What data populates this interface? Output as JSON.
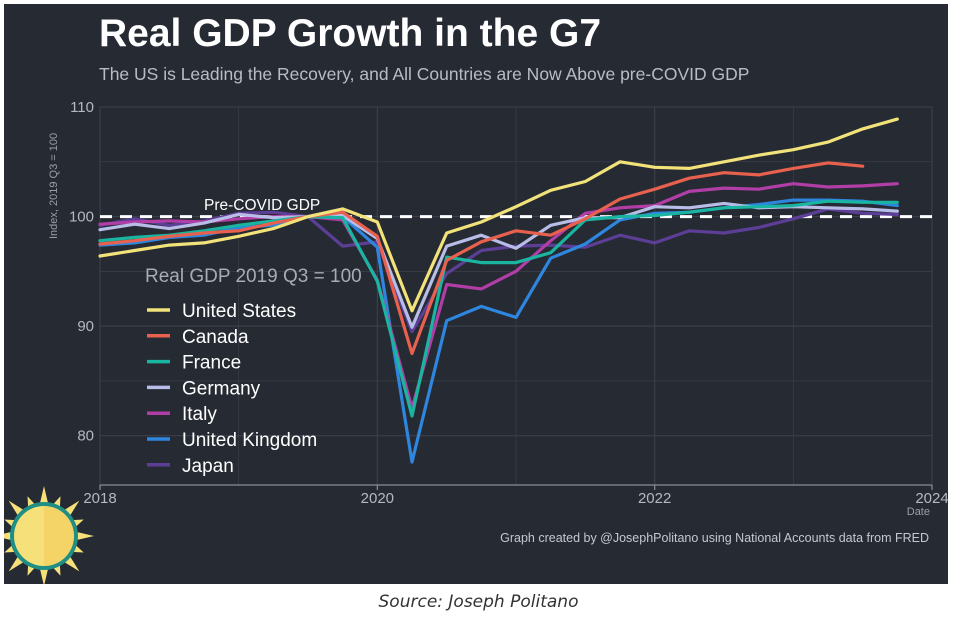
{
  "caption": "Source: Joseph Politano",
  "credit": "Graph created by @JosephPolitano using National Accounts data from FRED",
  "logo": {
    "icon": "sun-icon"
  },
  "colors": {
    "background": "#262a33",
    "grid": "#3a3f4a",
    "reference_line": "#ffffff"
  },
  "chart_data": {
    "type": "line",
    "title": "Real GDP Growth in the G7",
    "subtitle": "The US is Leading the Recovery, and All Countries are Now Above pre-COVID GDP",
    "xlabel": "Date",
    "ylabel": "Index, 2019 Q3 = 100",
    "xlim": [
      2018,
      2024
    ],
    "ylim": [
      75.5,
      110
    ],
    "x_ticks": [
      2018,
      2020,
      2022,
      2024
    ],
    "y_ticks": [
      80,
      90,
      100,
      110
    ],
    "grid": true,
    "legend_title": "Real GDP 2019 Q3 = 100",
    "legend_position": "lower-left",
    "reference_line": {
      "y": 100,
      "label": "Pre-COVID GDP",
      "style": "dashed"
    },
    "series": [
      {
        "name": "United States",
        "color": "#f2e27a",
        "points": [
          [
            2018.0,
            96.4
          ],
          [
            2018.25,
            96.9
          ],
          [
            2018.5,
            97.4
          ],
          [
            2018.75,
            97.6
          ],
          [
            2019.0,
            98.2
          ],
          [
            2019.25,
            98.9
          ],
          [
            2019.5,
            100.0
          ],
          [
            2019.75,
            100.7
          ],
          [
            2020.0,
            99.5
          ],
          [
            2020.25,
            91.4
          ],
          [
            2020.5,
            98.5
          ],
          [
            2020.75,
            99.5
          ],
          [
            2021.0,
            100.9
          ],
          [
            2021.25,
            102.4
          ],
          [
            2021.5,
            103.2
          ],
          [
            2021.75,
            105.0
          ],
          [
            2022.0,
            104.5
          ],
          [
            2022.25,
            104.4
          ],
          [
            2022.5,
            105.0
          ],
          [
            2022.75,
            105.6
          ],
          [
            2023.0,
            106.1
          ],
          [
            2023.25,
            106.8
          ],
          [
            2023.5,
            108.0
          ],
          [
            2023.75,
            108.9
          ]
        ]
      },
      {
        "name": "Canada",
        "color": "#e8604e",
        "points": [
          [
            2018.0,
            97.5
          ],
          [
            2018.25,
            97.8
          ],
          [
            2018.5,
            98.2
          ],
          [
            2018.75,
            98.5
          ],
          [
            2019.0,
            98.7
          ],
          [
            2019.25,
            99.4
          ],
          [
            2019.5,
            100.0
          ],
          [
            2019.75,
            100.4
          ],
          [
            2020.0,
            98.2
          ],
          [
            2020.25,
            87.5
          ],
          [
            2020.5,
            96.0
          ],
          [
            2020.75,
            97.7
          ],
          [
            2021.0,
            98.7
          ],
          [
            2021.25,
            98.3
          ],
          [
            2021.5,
            99.8
          ],
          [
            2021.75,
            101.6
          ],
          [
            2022.0,
            102.5
          ],
          [
            2022.25,
            103.5
          ],
          [
            2022.5,
            104.0
          ],
          [
            2022.75,
            103.8
          ],
          [
            2023.0,
            104.4
          ],
          [
            2023.25,
            104.9
          ],
          [
            2023.5,
            104.6
          ]
        ]
      },
      {
        "name": "France",
        "color": "#19b5a0",
        "points": [
          [
            2018.0,
            97.8
          ],
          [
            2018.25,
            98.1
          ],
          [
            2018.5,
            98.3
          ],
          [
            2018.75,
            98.7
          ],
          [
            2019.0,
            99.2
          ],
          [
            2019.25,
            99.6
          ],
          [
            2019.5,
            100.0
          ],
          [
            2019.75,
            99.9
          ],
          [
            2020.0,
            94.1
          ],
          [
            2020.25,
            81.8
          ],
          [
            2020.5,
            96.3
          ],
          [
            2020.75,
            95.8
          ],
          [
            2021.0,
            95.8
          ],
          [
            2021.25,
            96.7
          ],
          [
            2021.5,
            99.7
          ],
          [
            2021.75,
            100.0
          ],
          [
            2022.0,
            100.1
          ],
          [
            2022.25,
            100.4
          ],
          [
            2022.5,
            100.8
          ],
          [
            2022.75,
            100.9
          ],
          [
            2023.0,
            101.0
          ],
          [
            2023.25,
            101.4
          ],
          [
            2023.5,
            101.3
          ],
          [
            2023.75,
            101.3
          ]
        ]
      },
      {
        "name": "Germany",
        "color": "#b8bde8",
        "points": [
          [
            2018.0,
            98.8
          ],
          [
            2018.25,
            99.3
          ],
          [
            2018.5,
            98.9
          ],
          [
            2018.75,
            99.4
          ],
          [
            2019.0,
            100.2
          ],
          [
            2019.25,
            99.9
          ],
          [
            2019.5,
            100.0
          ],
          [
            2019.75,
            100.1
          ],
          [
            2020.0,
            98.0
          ],
          [
            2020.25,
            89.9
          ],
          [
            2020.5,
            97.3
          ],
          [
            2020.75,
            98.3
          ],
          [
            2021.0,
            97.1
          ],
          [
            2021.25,
            99.2
          ],
          [
            2021.5,
            99.9
          ],
          [
            2021.75,
            99.9
          ],
          [
            2022.0,
            100.9
          ],
          [
            2022.25,
            100.8
          ],
          [
            2022.5,
            101.2
          ],
          [
            2022.75,
            100.8
          ],
          [
            2023.0,
            100.9
          ],
          [
            2023.25,
            100.8
          ],
          [
            2023.5,
            100.7
          ],
          [
            2023.75,
            100.5
          ]
        ]
      },
      {
        "name": "Italy",
        "color": "#b13ea6",
        "points": [
          [
            2018.0,
            99.3
          ],
          [
            2018.25,
            99.5
          ],
          [
            2018.5,
            99.6
          ],
          [
            2018.75,
            99.5
          ],
          [
            2019.0,
            99.8
          ],
          [
            2019.25,
            100.0
          ],
          [
            2019.5,
            100.0
          ],
          [
            2019.75,
            99.7
          ],
          [
            2020.0,
            94.2
          ],
          [
            2020.25,
            82.5
          ],
          [
            2020.5,
            93.8
          ],
          [
            2020.75,
            93.4
          ],
          [
            2021.0,
            95.0
          ],
          [
            2021.25,
            97.8
          ],
          [
            2021.5,
            100.3
          ],
          [
            2021.75,
            100.8
          ],
          [
            2022.0,
            101.0
          ],
          [
            2022.25,
            102.3
          ],
          [
            2022.5,
            102.6
          ],
          [
            2022.75,
            102.5
          ],
          [
            2023.0,
            103.0
          ],
          [
            2023.25,
            102.7
          ],
          [
            2023.5,
            102.8
          ],
          [
            2023.75,
            103.0
          ]
        ]
      },
      {
        "name": "United Kingdom",
        "color": "#2e86de",
        "points": [
          [
            2018.0,
            97.4
          ],
          [
            2018.25,
            97.6
          ],
          [
            2018.5,
            98.1
          ],
          [
            2018.75,
            98.3
          ],
          [
            2019.0,
            99.0
          ],
          [
            2019.25,
            99.2
          ],
          [
            2019.5,
            100.0
          ],
          [
            2019.75,
            100.0
          ],
          [
            2020.0,
            97.2
          ],
          [
            2020.25,
            77.6
          ],
          [
            2020.5,
            90.5
          ],
          [
            2020.75,
            91.8
          ],
          [
            2021.0,
            90.8
          ],
          [
            2021.25,
            96.2
          ],
          [
            2021.5,
            97.5
          ],
          [
            2021.75,
            99.7
          ],
          [
            2022.0,
            100.3
          ],
          [
            2022.25,
            100.4
          ],
          [
            2022.5,
            100.8
          ],
          [
            2022.75,
            101.1
          ],
          [
            2023.0,
            101.5
          ],
          [
            2023.25,
            101.5
          ],
          [
            2023.5,
            101.4
          ],
          [
            2023.75,
            101.0
          ]
        ]
      },
      {
        "name": "Japan",
        "color": "#5d3e96",
        "points": [
          [
            2018.0,
            99.2
          ],
          [
            2018.25,
            99.8
          ],
          [
            2018.5,
            99.2
          ],
          [
            2018.75,
            99.6
          ],
          [
            2019.0,
            100.3
          ],
          [
            2019.25,
            100.4
          ],
          [
            2019.5,
            100.0
          ],
          [
            2019.75,
            97.3
          ],
          [
            2020.0,
            97.7
          ],
          [
            2020.25,
            89.5
          ],
          [
            2020.5,
            94.8
          ],
          [
            2020.75,
            96.9
          ],
          [
            2021.0,
            97.3
          ],
          [
            2021.25,
            97.4
          ],
          [
            2021.5,
            97.2
          ],
          [
            2021.75,
            98.3
          ],
          [
            2022.0,
            97.6
          ],
          [
            2022.25,
            98.7
          ],
          [
            2022.5,
            98.5
          ],
          [
            2022.75,
            99.0
          ],
          [
            2023.0,
            99.8
          ],
          [
            2023.25,
            100.7
          ],
          [
            2023.5,
            100.3
          ],
          [
            2023.75,
            100.2
          ]
        ]
      }
    ]
  }
}
